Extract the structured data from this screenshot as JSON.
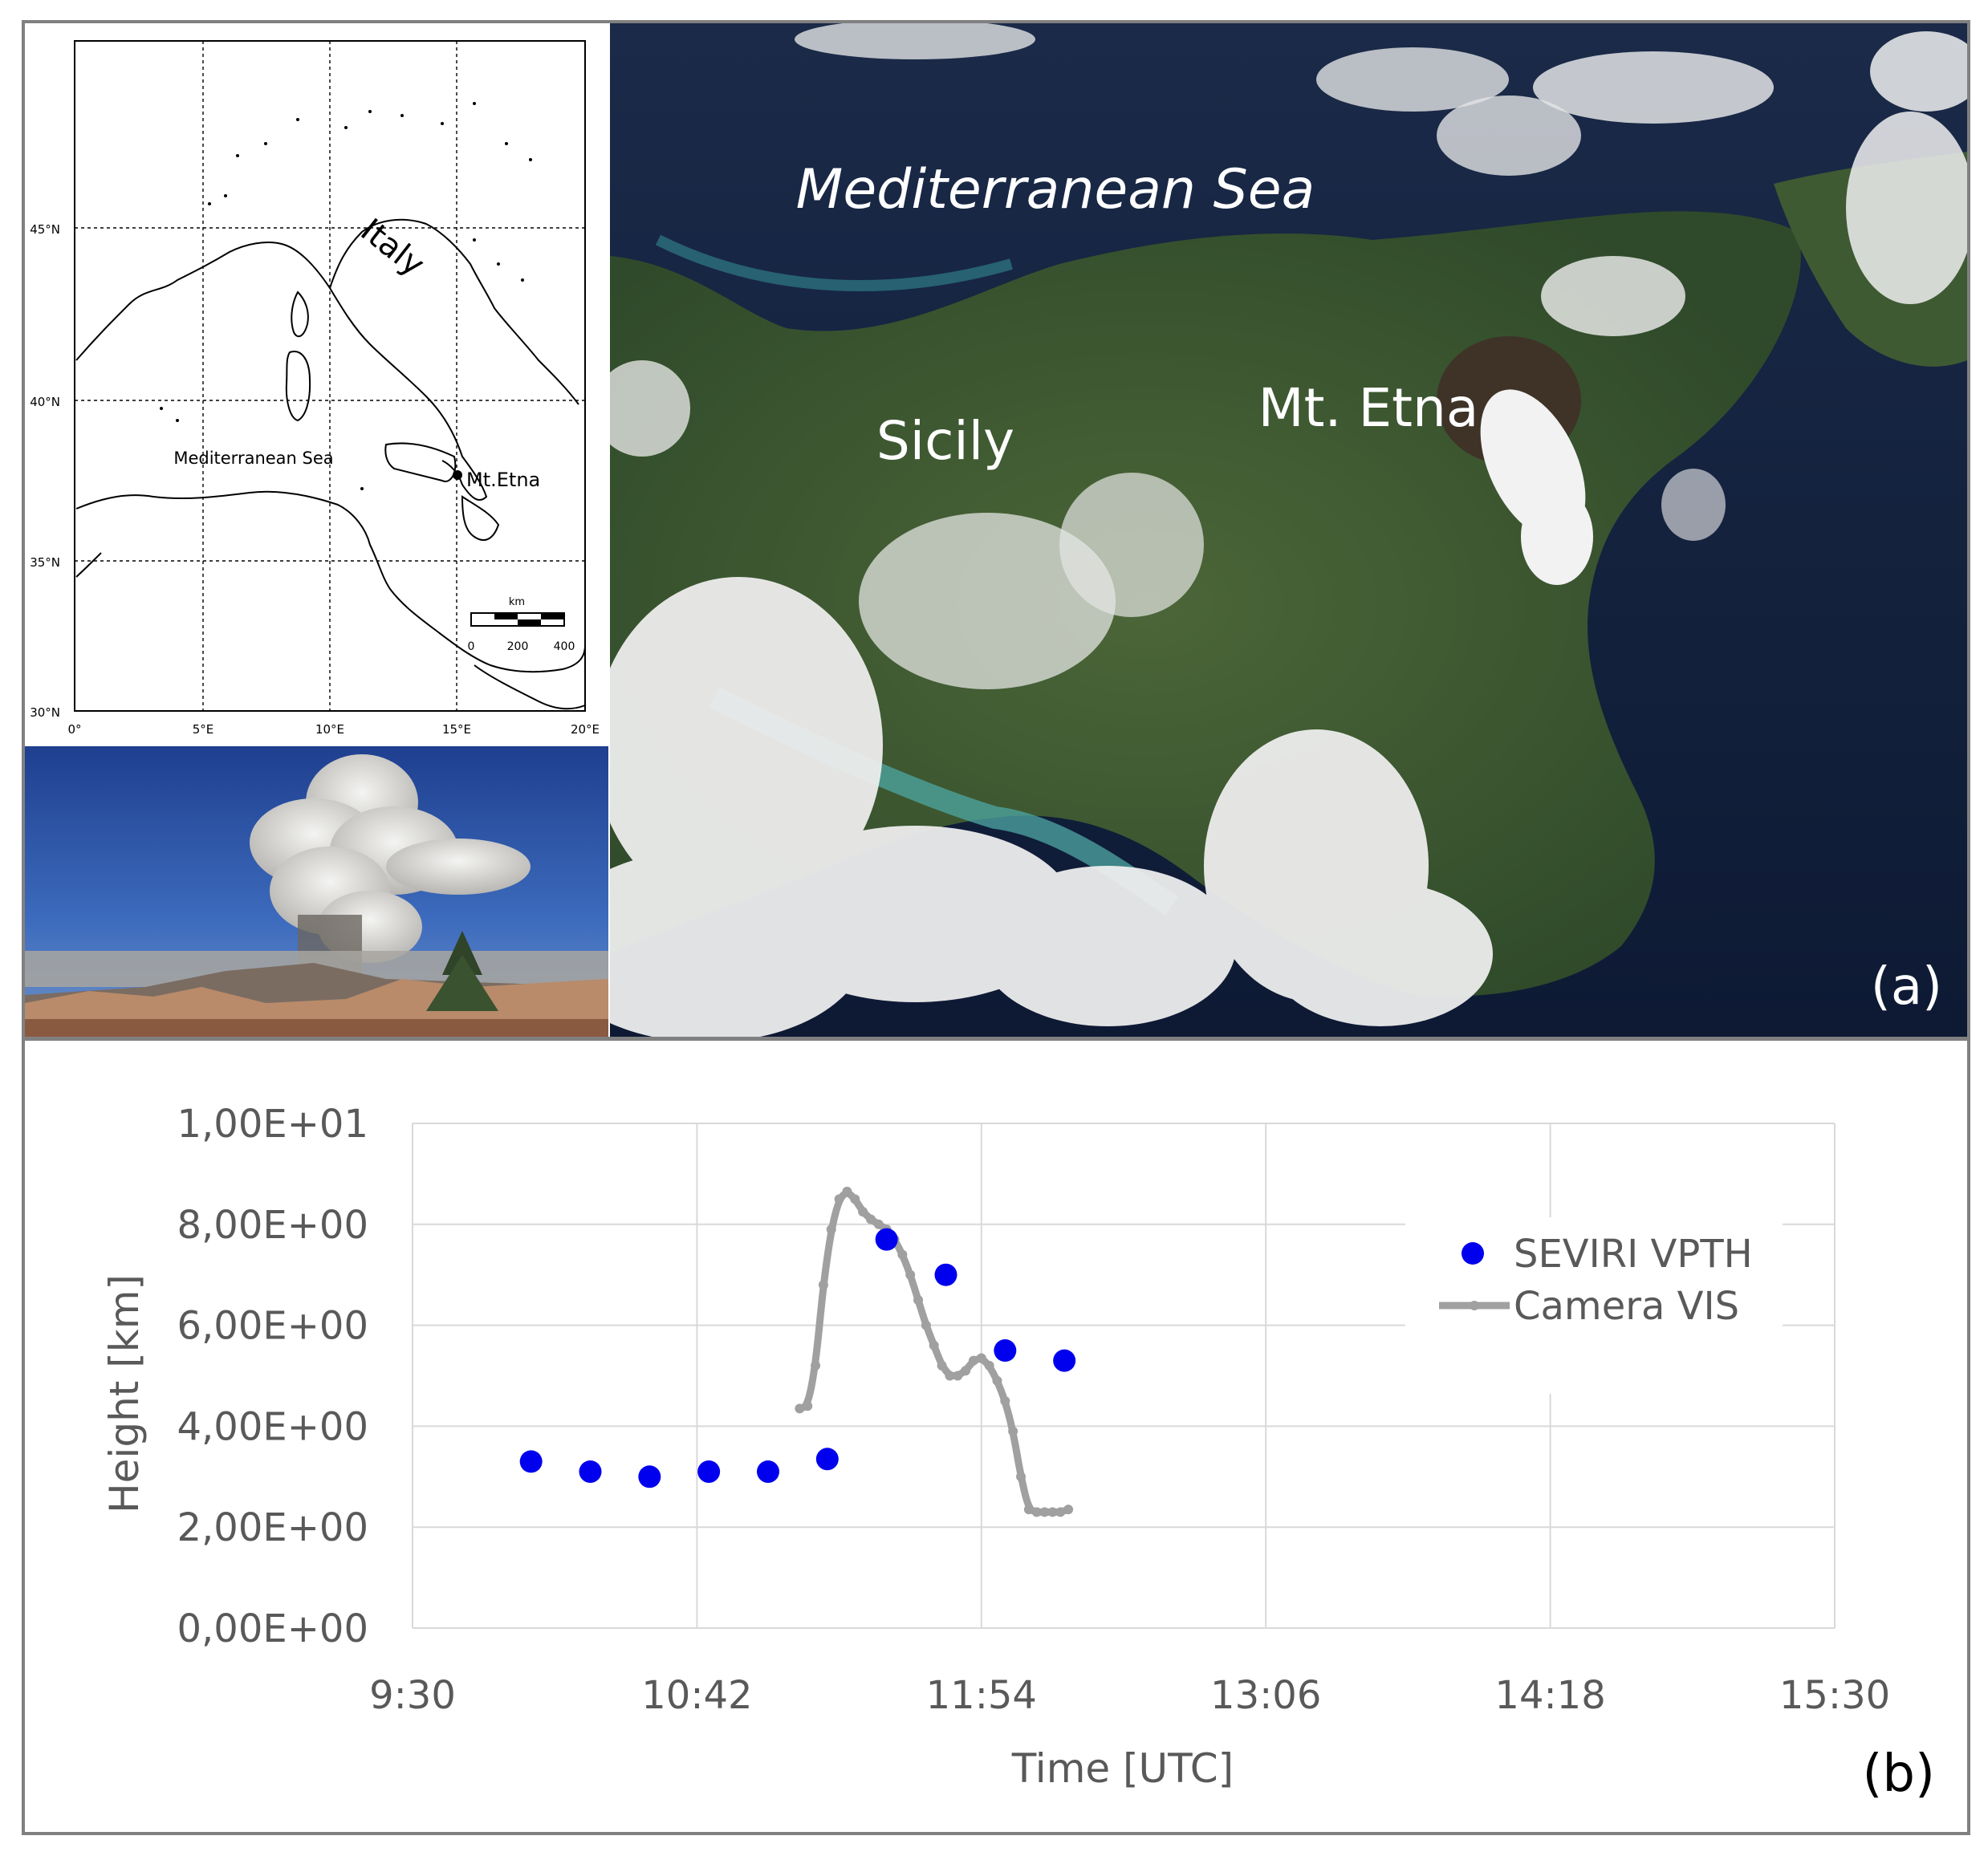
{
  "inset_map": {
    "lat_labels": [
      "45°N",
      "40°N",
      "35°N",
      "30°N"
    ],
    "lon_labels": [
      "0°",
      "5°E",
      "10°E",
      "15°E",
      "20°E"
    ],
    "country_label": "Italy",
    "sea_label": "Mediterranean Sea",
    "volcano_label": "Mt.Etna",
    "scale_unit": "km",
    "scale_ticks": [
      "0",
      "200",
      "400"
    ]
  },
  "satellite": {
    "sea_label": "Mediterranean Sea",
    "island_label": "Sicily",
    "volcano_label": "Mt. Etna",
    "panel_label": "(a)"
  },
  "chart_data": {
    "type": "scatter",
    "panel_label": "(b)",
    "xlabel": "Time [UTC]",
    "ylabel": "Height [km]",
    "x_ticks": [
      "9:30",
      "10:42",
      "11:54",
      "13:06",
      "14:18",
      "15:30"
    ],
    "y_ticks": [
      "0,00E+00",
      "2,00E+00",
      "4,00E+00",
      "6,00E+00",
      "8,00E+00",
      "1,00E+01"
    ],
    "xlim": [
      "9:30",
      "15:30"
    ],
    "ylim": [
      0,
      10
    ],
    "grid": true,
    "legend_position": "right",
    "series": [
      {
        "name": "SEVIRI VPTH",
        "style": "markers",
        "color": "#0000ee",
        "x": [
          "10:00",
          "10:15",
          "10:30",
          "10:45",
          "11:00",
          "11:15",
          "11:30",
          "11:45",
          "12:00",
          "12:15"
        ],
        "y": [
          3.3,
          3.1,
          3.0,
          3.1,
          3.1,
          3.35,
          7.7,
          7.0,
          5.5,
          5.3
        ]
      },
      {
        "name": "Camera VIS",
        "style": "line-markers",
        "color": "#a0a0a0",
        "x": [
          "11:08",
          "11:10",
          "11:12",
          "11:14",
          "11:16",
          "11:18",
          "11:20",
          "11:22",
          "11:24",
          "11:26",
          "11:28",
          "11:30",
          "11:32",
          "11:34",
          "11:36",
          "11:38",
          "11:40",
          "11:42",
          "11:44",
          "11:46",
          "11:48",
          "11:50",
          "11:52",
          "11:54",
          "11:56",
          "11:58",
          "12:00",
          "12:02",
          "12:04",
          "12:06",
          "12:08",
          "12:10",
          "12:12",
          "12:14",
          "12:16"
        ],
        "y": [
          4.35,
          4.4,
          5.2,
          6.8,
          7.9,
          8.5,
          8.65,
          8.5,
          8.25,
          8.1,
          8.0,
          7.9,
          7.7,
          7.4,
          7.0,
          6.5,
          6.0,
          5.6,
          5.2,
          5.0,
          5.0,
          5.1,
          5.3,
          5.35,
          5.2,
          4.9,
          4.5,
          3.9,
          3.0,
          2.35,
          2.3,
          2.3,
          2.3,
          2.3,
          2.35
        ]
      }
    ]
  }
}
